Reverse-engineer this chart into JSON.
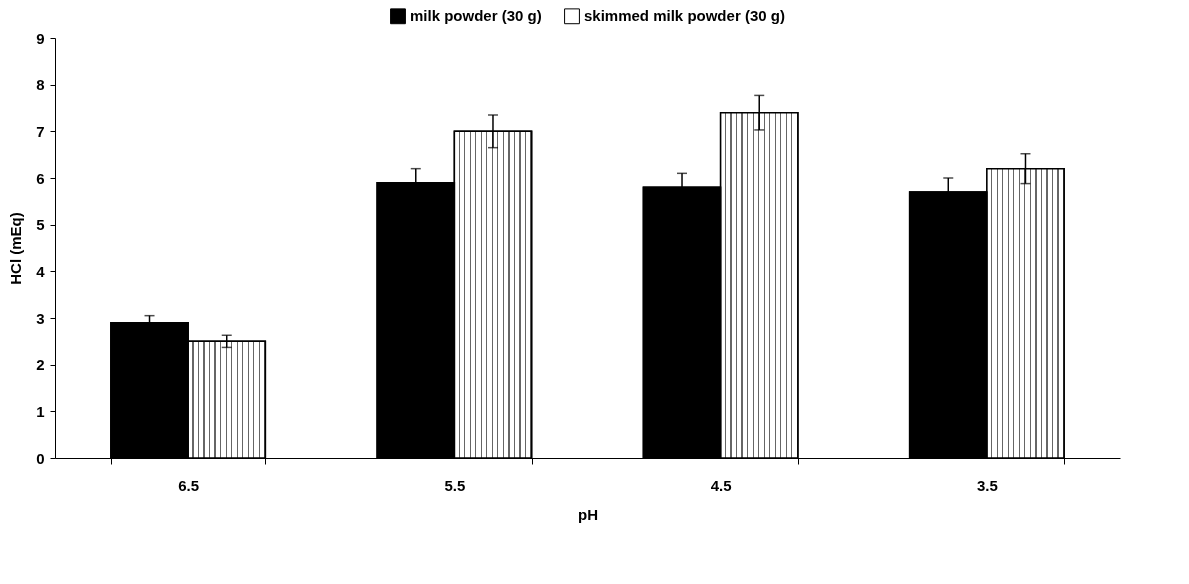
{
  "chart_data": {
    "type": "bar",
    "xlabel": "pH",
    "ylabel": "HCl (mEq)",
    "categories": [
      "6.5",
      "5.5",
      "4.5",
      "3.5"
    ],
    "series": [
      {
        "name": "milk powder (30 g)",
        "color": "#000000",
        "values": [
          2.9,
          5.9,
          5.8,
          5.7
        ],
        "errors": [
          0.15,
          0.3,
          0.3,
          0.3
        ]
      },
      {
        "name": "skimmed milk powder (30 g)",
        "color": "#ffffff",
        "values": [
          2.5,
          7.0,
          7.4,
          6.2
        ],
        "errors": [
          0.13,
          0.35,
          0.37,
          0.32
        ]
      }
    ],
    "ylim": [
      0,
      9
    ],
    "yticks": [
      0,
      1,
      2,
      3,
      4,
      5,
      6,
      7,
      8,
      9
    ],
    "grid": false,
    "legend": "top"
  }
}
